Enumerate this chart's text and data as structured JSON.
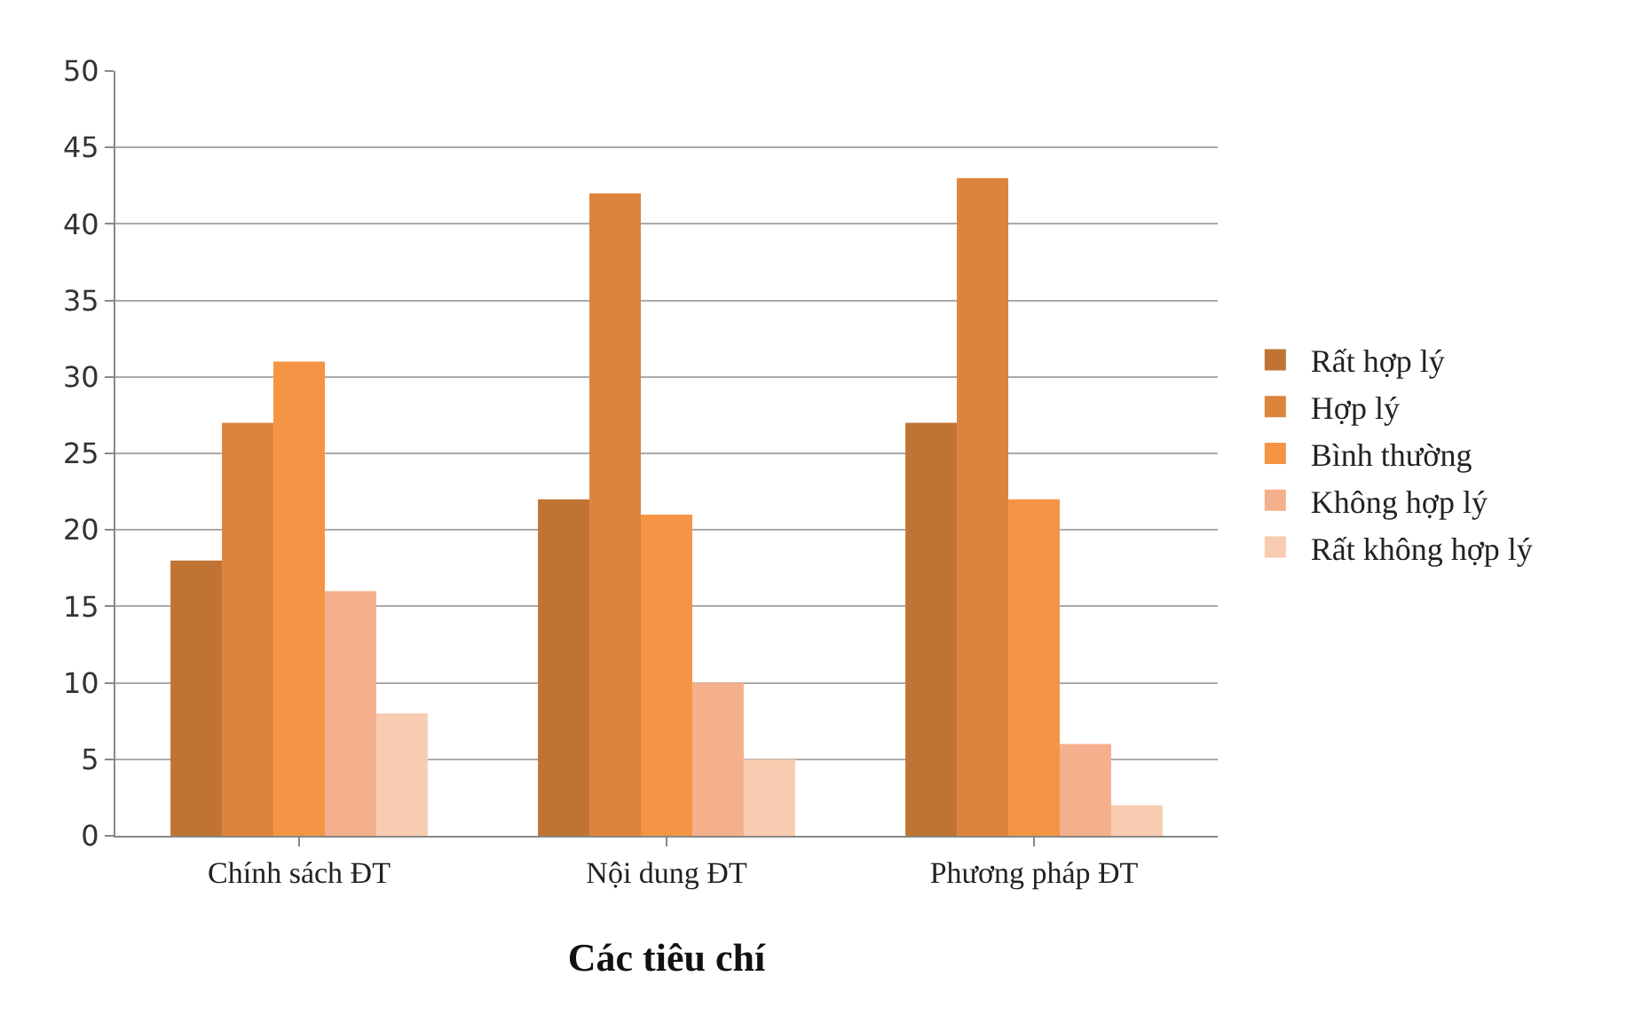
{
  "chart_data": {
    "type": "bar",
    "xlabel": "Các tiêu chí",
    "categories": [
      "Chính sách ĐT",
      "Nội dung ĐT",
      "Phương pháp ĐT"
    ],
    "series": [
      {
        "name": "Rất hợp lý",
        "color": "#c07434",
        "values": [
          18,
          22,
          27
        ]
      },
      {
        "name": "Hợp lý",
        "color": "#dc843c",
        "values": [
          27,
          42,
          43
        ]
      },
      {
        "name": "Bình thường",
        "color": "#f49444",
        "values": [
          31,
          21,
          22
        ]
      },
      {
        "name": "Không hợp lý",
        "color": "#f4b08c",
        "values": [
          16,
          10,
          6
        ]
      },
      {
        "name": "Rất không hợp lý",
        "color": "#f8ccb0",
        "values": [
          8,
          5,
          2
        ]
      }
    ],
    "ylim": [
      0,
      50
    ],
    "yticks": [
      0,
      5,
      10,
      15,
      20,
      25,
      30,
      35,
      40,
      45,
      50
    ],
    "grid": "y",
    "legend": "right"
  }
}
